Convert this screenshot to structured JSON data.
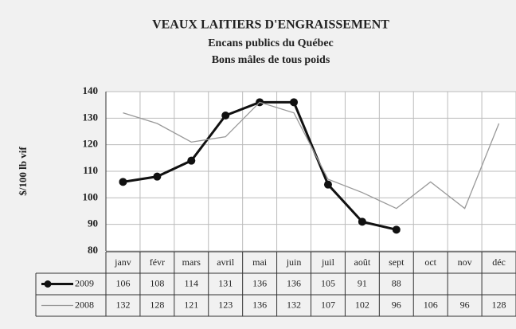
{
  "chart_data": {
    "type": "line",
    "title": "VEAUX LAITIERS D'ENGRAISSEMENT",
    "subtitle": [
      "Encans publics du Québec",
      "Bons mâles de tous poids"
    ],
    "y_label": "$/100 lb vif",
    "categories": [
      "janv",
      "févr",
      "mars",
      "avril",
      "mai",
      "juin",
      "juil",
      "août",
      "sept",
      "oct",
      "nov",
      "déc"
    ],
    "series": [
      {
        "name": "2009",
        "color": "#111111",
        "marker": "circle",
        "values": [
          106,
          108,
          114,
          131,
          136,
          136,
          105,
          91,
          88,
          null,
          null,
          null
        ]
      },
      {
        "name": "2008",
        "color": "#999999",
        "values": [
          132,
          128,
          121,
          123,
          136,
          132,
          107,
          102,
          96,
          106,
          96,
          128
        ]
      }
    ],
    "ylim": [
      80,
      140
    ],
    "yticks": [
      80,
      90,
      100,
      110,
      120,
      130,
      140
    ],
    "grid": true
  }
}
